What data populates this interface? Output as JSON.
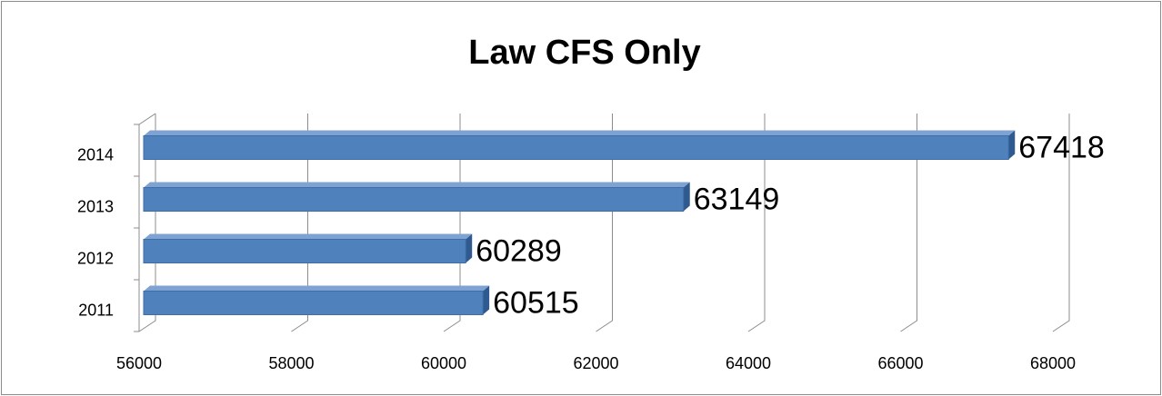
{
  "chart_data": {
    "type": "bar3d_horizontal",
    "title": "Law CFS Only",
    "categories": [
      "2011",
      "2012",
      "2013",
      "2014"
    ],
    "values": [
      60515,
      60289,
      63149,
      67418
    ],
    "color": "#4f81bd",
    "xlim": [
      56000,
      68000
    ],
    "xticks": [
      56000,
      58000,
      60000,
      62000,
      64000,
      66000,
      68000
    ],
    "grid": true
  }
}
